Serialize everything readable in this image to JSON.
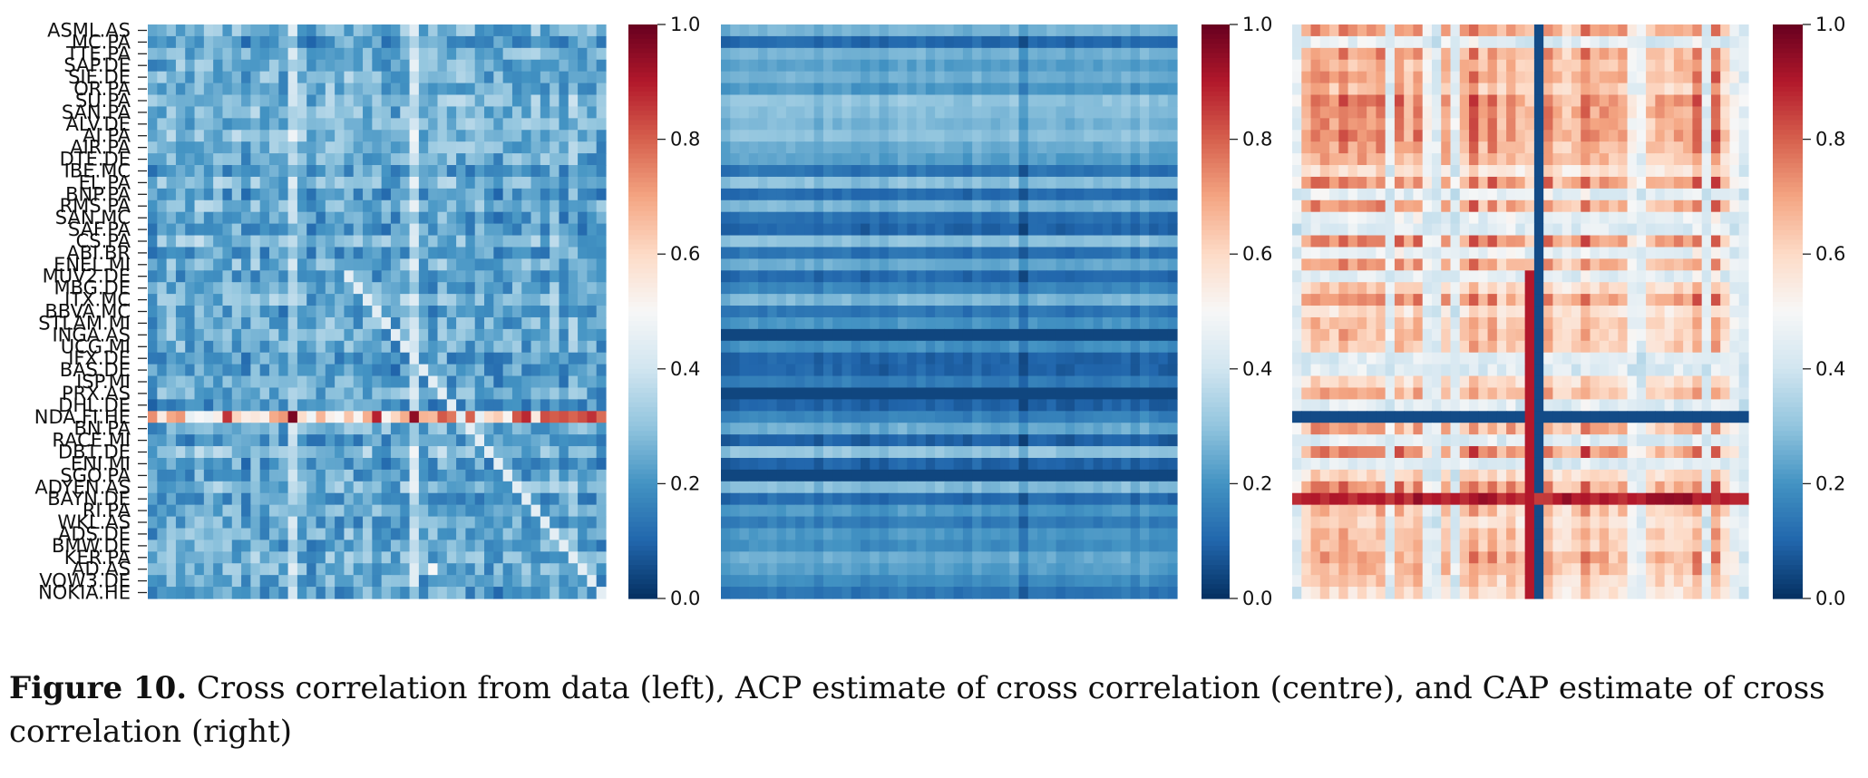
{
  "caption": {
    "label": "Figure 10.",
    "text": "Cross correlation from data (left), ACP estimate of cross correlation (centre), and CAP estimate of cross correlation (right)"
  },
  "colors": {
    "colormap": "RdBu_r",
    "stops": [
      "#053061",
      "#2166ac",
      "#4393c3",
      "#92c5de",
      "#d1e5f0",
      "#f7f7f7",
      "#fddbc7",
      "#f4a582",
      "#d6604d",
      "#b2182b",
      "#67001f"
    ]
  },
  "chart_data": [
    {
      "type": "heatmap",
      "panel": "left",
      "title": "",
      "ylabels": [
        "ASML.AS",
        "MC.PA",
        "TTE.PA",
        "SAP.DE",
        "SIE.DE",
        "OR.PA",
        "SU.PA",
        "SAN.PA",
        "ALV.DE",
        "AI.PA",
        "AIR.PA",
        "DTE.DE",
        "IBE.MC",
        "EL.PA",
        "BNP.PA",
        "RMS.PA",
        "SAN.MC",
        "SAF.PA",
        "CS.PA",
        "ABI.BR",
        "ENEL.MI",
        "MUV2.DE",
        "MBG.DE",
        "ITX.MC",
        "BBVA.MC",
        "STLAM.MI",
        "INGA.AS",
        "UCG.MI",
        "IFX.DE",
        "BAS.DE",
        "ISP.MI",
        "PRX.AS",
        "DHL.DE",
        "NDA.FI.HE",
        "BN.PA",
        "RACE.MI",
        "DB1.DE",
        "ENI.MI",
        "SGO.PA",
        "ADYEN.AS",
        "BAYN.DE",
        "RI.PA",
        "WKL.AS",
        "ADS.DE",
        "BMW.DE",
        "KER.PA",
        "AD.AS",
        "VOW3.DE",
        "NOKIA.HE"
      ],
      "value_range": [
        0.0,
        1.0
      ],
      "colorbar_ticks": [
        "0.0",
        "0.2",
        "0.4",
        "0.6",
        "0.8",
        "1.0"
      ],
      "description_of_values": "mostly 0.0-0.3 (dark/medium blue); highlighted row NDA.FI.HE up to ~1.0; light diagonal around rows 25-45"
    },
    {
      "type": "heatmap",
      "panel": "centre",
      "value_range": [
        0.0,
        1.0
      ],
      "colorbar_ticks": [
        "0.0",
        "0.2",
        "0.4",
        "0.6",
        "0.8",
        "1.0"
      ],
      "description_of_values": "horizontal banded structure, values ~0.0-0.3"
    },
    {
      "type": "heatmap",
      "panel": "right",
      "value_range": [
        0.0,
        1.0
      ],
      "colorbar_ticks": [
        "0.0",
        "0.2",
        "0.4",
        "0.6",
        "0.8",
        "1.0"
      ],
      "description_of_values": "mostly 0.4-0.75 (white/light red); dark blue row ~33 and column ~26 near 0.0; dark red row ~40 near 0.9"
    }
  ]
}
